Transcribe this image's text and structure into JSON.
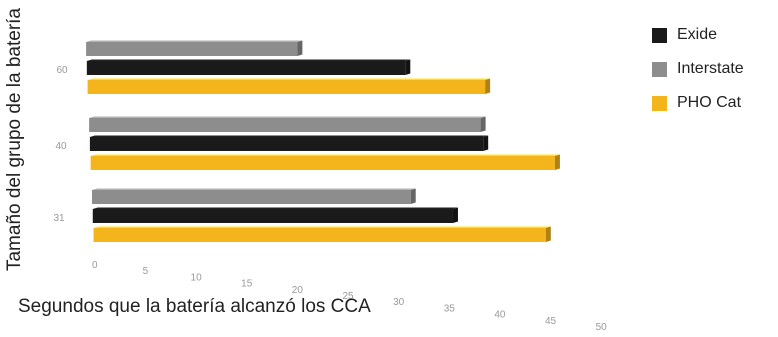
{
  "chart_data": {
    "type": "bar",
    "orientation": "horizontal",
    "categories": [
      "60",
      "40",
      "31"
    ],
    "series": [
      {
        "name": "Exide",
        "values": [
          33,
          40,
          36
        ],
        "color": "#1a1a1a"
      },
      {
        "name": "Interstate",
        "values": [
          22,
          40,
          32
        ],
        "color": "#8d8d8d"
      },
      {
        "name": "PHO Cat",
        "values": [
          41,
          47,
          45
        ],
        "color": "#f4b41c"
      }
    ],
    "x_ticks": [
      "0",
      "5",
      "10",
      "15",
      "20",
      "25",
      "30",
      "35",
      "40",
      "45",
      "50"
    ],
    "xlim": [
      0,
      50
    ],
    "xlabel": "Segundos que la batería alcanzó los CCA",
    "ylabel": "Tamaño del grupo de la batería",
    "legend_position": "top-right",
    "style": "3d-perspective"
  }
}
